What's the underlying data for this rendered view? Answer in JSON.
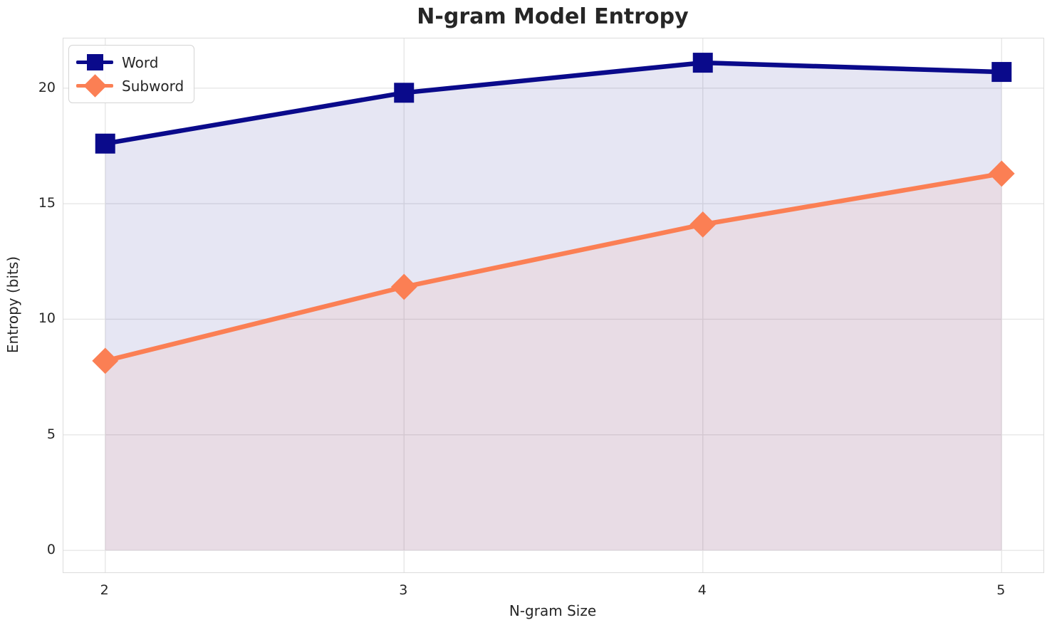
{
  "chart_data": {
    "type": "line",
    "title": "N-gram Model Entropy",
    "xlabel": "N-gram Size",
    "ylabel": "Entropy (bits)",
    "x": [
      2,
      3,
      4,
      5
    ],
    "x_tick_labels": [
      "2",
      "3",
      "4",
      "5"
    ],
    "y_ticks": [
      0,
      5,
      10,
      15,
      20
    ],
    "y_tick_labels": [
      "0",
      "5",
      "10",
      "15",
      "20"
    ],
    "xlim": [
      1.86,
      5.14
    ],
    "ylim": [
      -0.95,
      22.15
    ],
    "grid": true,
    "legend_position": "upper-left",
    "series": [
      {
        "name": "Word",
        "values": [
          17.6,
          19.8,
          21.1,
          20.7
        ],
        "color": "#0a0a8b",
        "marker": "square",
        "line_width": 6.5,
        "fill_to_zero": true,
        "fill_opacity": 0.1
      },
      {
        "name": "Subword",
        "values": [
          8.2,
          11.4,
          14.1,
          16.3
        ],
        "color": "#fb7f54",
        "marker": "diamond",
        "line_width": 6.5,
        "fill_to_zero": true,
        "fill_opacity": 0.09
      }
    ]
  },
  "style_colors": {
    "grid": "#e7e7e7",
    "spine": "#dcdcdc",
    "text": "#262626"
  }
}
